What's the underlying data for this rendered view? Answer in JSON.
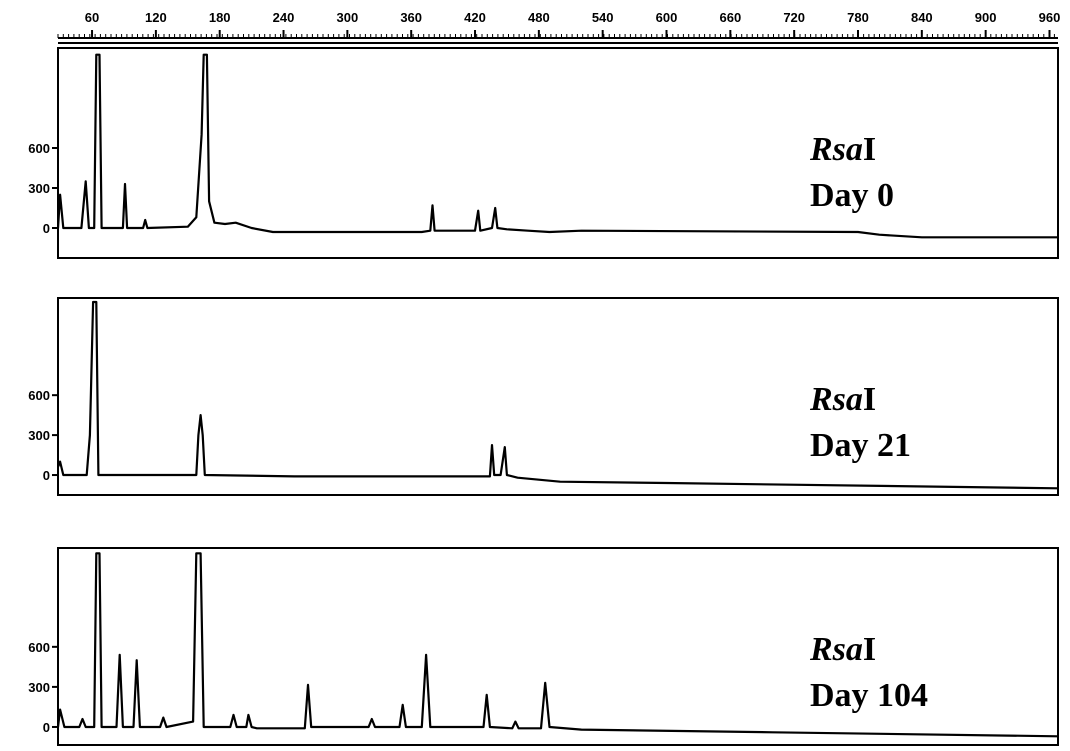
{
  "chart_data": [
    {
      "type": "line",
      "enzyme": "Rsa",
      "enzyme_suffix": "I",
      "title": "Day 0",
      "xlim": [
        28,
        968
      ],
      "xticks": [
        60,
        120,
        180,
        240,
        300,
        360,
        420,
        480,
        540,
        600,
        660,
        720,
        780,
        840,
        900,
        960
      ],
      "ylim": [
        -225,
        1350
      ],
      "yticks": [
        0,
        300,
        600
      ],
      "color": "#000000",
      "x": [
        28,
        30,
        33,
        50,
        54,
        57,
        62,
        64,
        67,
        69,
        89,
        91,
        93,
        108,
        110,
        112,
        150,
        158,
        163,
        165,
        168,
        170,
        175,
        185,
        195,
        210,
        230,
        370,
        378,
        380,
        382,
        420,
        423,
        425,
        436,
        439,
        441,
        450,
        470,
        490,
        520,
        780,
        800,
        840,
        968
      ],
      "values": [
        0,
        250,
        0,
        0,
        350,
        0,
        0,
        1300,
        1300,
        0,
        0,
        330,
        0,
        0,
        60,
        0,
        10,
        80,
        700,
        1300,
        1300,
        200,
        40,
        30,
        40,
        0,
        -30,
        -30,
        -20,
        170,
        -20,
        -20,
        130,
        -20,
        0,
        150,
        0,
        -10,
        -20,
        -30,
        -20,
        -30,
        -50,
        -70,
        -70
      ]
    },
    {
      "type": "line",
      "enzyme": "Rsa",
      "enzyme_suffix": "I",
      "title": "Day 21",
      "xlim": [
        28,
        968
      ],
      "ylim": [
        -150,
        1330
      ],
      "yticks": [
        0,
        300,
        600
      ],
      "color": "#000000",
      "x": [
        28,
        30,
        33,
        55,
        58,
        61,
        64,
        66,
        158,
        160,
        162,
        164,
        166,
        250,
        434,
        436,
        438,
        444,
        448,
        450,
        460,
        500,
        600,
        968
      ],
      "values": [
        60,
        100,
        0,
        0,
        300,
        1300,
        1300,
        0,
        0,
        300,
        450,
        300,
        0,
        -10,
        -10,
        225,
        0,
        0,
        210,
        0,
        -20,
        -50,
        -60,
        -100
      ]
    },
    {
      "type": "line",
      "enzyme": "Rsa",
      "enzyme_suffix": "I",
      "title": "Day 104",
      "xlim": [
        28,
        968
      ],
      "ylim": [
        -135,
        1340
      ],
      "yticks": [
        0,
        300,
        600
      ],
      "color": "#000000",
      "x": [
        28,
        30,
        34,
        48,
        51,
        54,
        62,
        64,
        67,
        69,
        83,
        86,
        89,
        99,
        102,
        105,
        124,
        127,
        130,
        155,
        158,
        160,
        162,
        165,
        190,
        193,
        196,
        205,
        207,
        210,
        215,
        260,
        263,
        266,
        320,
        323,
        326,
        349,
        352,
        355,
        370,
        374,
        378,
        428,
        431,
        434,
        455,
        458,
        461,
        482,
        486,
        490,
        520,
        700,
        968
      ],
      "values": [
        0,
        130,
        0,
        0,
        60,
        0,
        0,
        1300,
        1300,
        0,
        0,
        540,
        0,
        0,
        500,
        0,
        0,
        70,
        0,
        40,
        1300,
        1300,
        1300,
        0,
        0,
        90,
        0,
        0,
        90,
        0,
        -10,
        -10,
        315,
        0,
        0,
        60,
        0,
        0,
        165,
        0,
        0,
        540,
        0,
        0,
        240,
        0,
        -10,
        40,
        -10,
        -10,
        330,
        0,
        -20,
        -40,
        -70
      ]
    }
  ]
}
